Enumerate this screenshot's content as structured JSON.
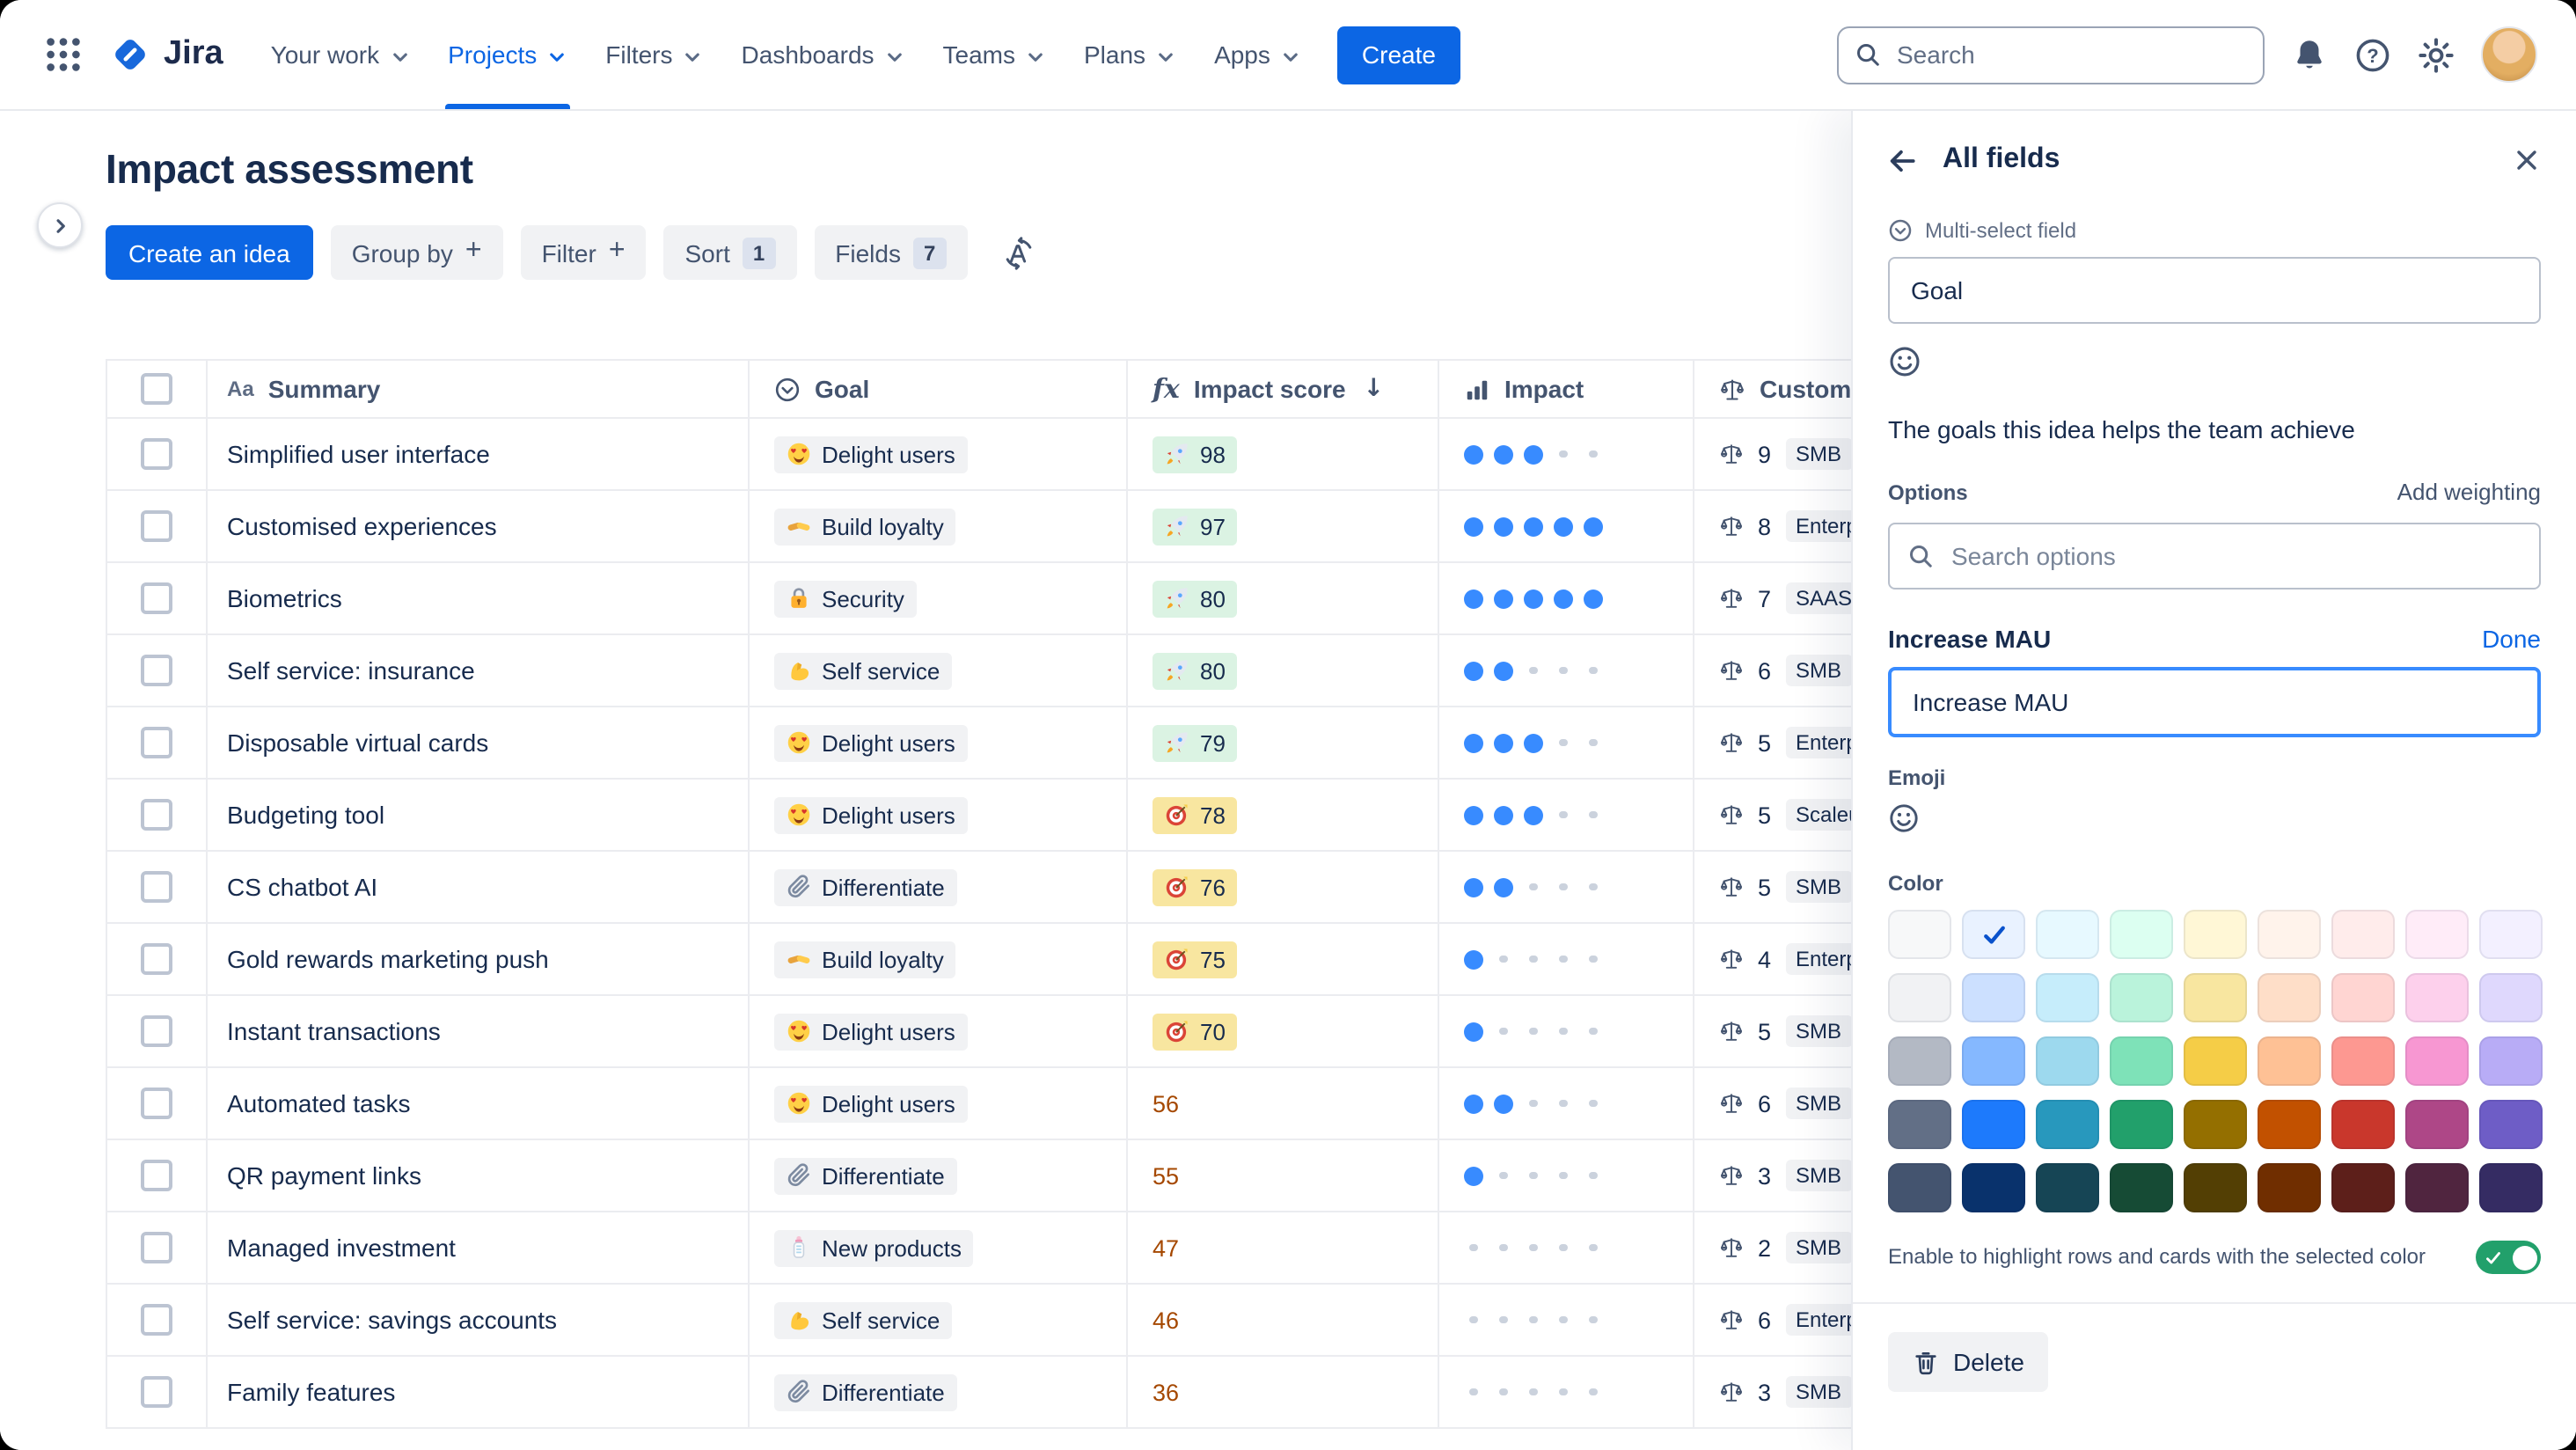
{
  "nav": {
    "brand": "Jira",
    "items": [
      {
        "label": "Your work"
      },
      {
        "label": "Projects",
        "active": true
      },
      {
        "label": "Filters"
      },
      {
        "label": "Dashboards"
      },
      {
        "label": "Teams"
      },
      {
        "label": "Plans"
      },
      {
        "label": "Apps"
      }
    ],
    "create_label": "Create",
    "search_placeholder": "Search",
    "right_icons": [
      "notifications-icon",
      "help-icon",
      "settings-icon",
      "user-avatar"
    ]
  },
  "page": {
    "title": "Impact assessment",
    "toolbar": {
      "create_idea": "Create an idea",
      "group_by": "Group by",
      "filter": "Filter",
      "sort": "Sort",
      "sort_count": "1",
      "fields": "Fields",
      "fields_count": "7"
    }
  },
  "table": {
    "columns": [
      {
        "key": "summary",
        "label": "Summary",
        "icon": "text-field-icon"
      },
      {
        "key": "goal",
        "label": "Goal",
        "icon": "select-field-icon"
      },
      {
        "key": "impact_score",
        "label": "Impact score",
        "icon": "formula-icon",
        "sorted": "desc"
      },
      {
        "key": "impact",
        "label": "Impact",
        "icon": "bar-chart-icon"
      },
      {
        "key": "customers",
        "label": "Customers",
        "icon": "scales-icon"
      }
    ],
    "rows": [
      {
        "summary": "Simplified user interface",
        "goal": {
          "emoji": "heart-eyes",
          "label": "Delight users"
        },
        "score": {
          "value": "98",
          "tier": "high",
          "emoji": "rocket"
        },
        "impact": 3,
        "customers": {
          "count": "9",
          "tag": "SMB"
        }
      },
      {
        "summary": "Customised experiences",
        "goal": {
          "emoji": "handshake",
          "label": "Build loyalty"
        },
        "score": {
          "value": "97",
          "tier": "high",
          "emoji": "rocket"
        },
        "impact": 5,
        "customers": {
          "count": "8",
          "tag": "Enterprise"
        }
      },
      {
        "summary": "Biometrics",
        "goal": {
          "emoji": "lock",
          "label": "Security"
        },
        "score": {
          "value": "80",
          "tier": "high",
          "emoji": "rocket"
        },
        "impact": 5,
        "customers": {
          "count": "7",
          "tag": "SAAS"
        }
      },
      {
        "summary": "Self service: insurance",
        "goal": {
          "emoji": "muscle",
          "label": "Self service"
        },
        "score": {
          "value": "80",
          "tier": "high",
          "emoji": "rocket"
        },
        "impact": 2,
        "customers": {
          "count": "6",
          "tag": "SMB"
        }
      },
      {
        "summary": "Disposable virtual cards",
        "goal": {
          "emoji": "heart-eyes",
          "label": "Delight users"
        },
        "score": {
          "value": "79",
          "tier": "high",
          "emoji": "rocket"
        },
        "impact": 3,
        "customers": {
          "count": "5",
          "tag": "Enterprise"
        }
      },
      {
        "summary": "Budgeting tool",
        "goal": {
          "emoji": "heart-eyes",
          "label": "Delight users"
        },
        "score": {
          "value": "78",
          "tier": "mid",
          "emoji": "target"
        },
        "impact": 3,
        "customers": {
          "count": "5",
          "tag": "Scaleup"
        }
      },
      {
        "summary": "CS chatbot AI",
        "goal": {
          "emoji": "clip",
          "label": "Differentiate"
        },
        "score": {
          "value": "76",
          "tier": "mid",
          "emoji": "target"
        },
        "impact": 2,
        "customers": {
          "count": "5",
          "tag": "SMB"
        }
      },
      {
        "summary": "Gold rewards marketing push",
        "goal": {
          "emoji": "handshake",
          "label": "Build loyalty"
        },
        "score": {
          "value": "75",
          "tier": "mid",
          "emoji": "target"
        },
        "impact": 1,
        "customers": {
          "count": "4",
          "tag": "Enterprise"
        }
      },
      {
        "summary": "Instant transactions",
        "goal": {
          "emoji": "heart-eyes",
          "label": "Delight users"
        },
        "score": {
          "value": "70",
          "tier": "mid",
          "emoji": "target"
        },
        "impact": 1,
        "customers": {
          "count": "5",
          "tag": "SMB"
        }
      },
      {
        "summary": "Automated tasks",
        "goal": {
          "emoji": "heart-eyes",
          "label": "Delight users"
        },
        "score": {
          "value": "56",
          "tier": "low"
        },
        "impact": 2,
        "customers": {
          "count": "6",
          "tag": "SMB"
        }
      },
      {
        "summary": "QR payment links",
        "goal": {
          "emoji": "clip",
          "label": "Differentiate"
        },
        "score": {
          "value": "55",
          "tier": "low"
        },
        "impact": 1,
        "customers": {
          "count": "3",
          "tag": "SMB"
        }
      },
      {
        "summary": "Managed investment",
        "goal": {
          "emoji": "bottle",
          "label": "New products"
        },
        "score": {
          "value": "47",
          "tier": "low"
        },
        "impact": 0,
        "customers": {
          "count": "2",
          "tag": "SMB"
        }
      },
      {
        "summary": "Self service: savings accounts",
        "goal": {
          "emoji": "muscle",
          "label": "Self service"
        },
        "score": {
          "value": "46",
          "tier": "low"
        },
        "impact": 0,
        "customers": {
          "count": "6",
          "tag": "Enterprise"
        }
      },
      {
        "summary": "Family features",
        "goal": {
          "emoji": "clip",
          "label": "Differentiate"
        },
        "score": {
          "value": "36",
          "tier": "low"
        },
        "impact": 0,
        "customers": {
          "count": "3",
          "tag": "SMB"
        }
      }
    ]
  },
  "panel": {
    "title": "All fields",
    "field_type": "Multi-select field",
    "field_name": "Goal",
    "description": "The goals this idea helps the team achieve",
    "options_label": "Options",
    "add_weighting": "Add weighting",
    "search_placeholder": "Search options",
    "option": {
      "name": "Increase MAU",
      "done": "Done",
      "value": "Increase MAU"
    },
    "emoji_label": "Emoji",
    "color_label": "Color",
    "colors": [
      [
        "#F7F8F9",
        "#E9F2FF",
        "#E7F9FF",
        "#DCFFF1",
        "#FFF7D6",
        "#FFF3EB",
        "#FFECEB",
        "#FFECF8",
        "#F3F0FF"
      ],
      [
        "#F1F2F4",
        "#CCE0FF",
        "#C6EDFB",
        "#BAF3DB",
        "#F8E6A0",
        "#FEDEC8",
        "#FFD5D2",
        "#FDD0EC",
        "#DFD8FD"
      ],
      [
        "#B3B9C4",
        "#85B8FF",
        "#9DD9EE",
        "#7EE2B8",
        "#F5CD47",
        "#FEC195",
        "#FD9891",
        "#F797D2",
        "#B8ACF6"
      ],
      [
        "#626F86",
        "#1D7AFC",
        "#2898BD",
        "#22A06B",
        "#946F00",
        "#C25100",
        "#C9372C",
        "#AE4787",
        "#6E5DC6"
      ],
      [
        "#44546F",
        "#09326C",
        "#164555",
        "#164B35",
        "#533F04",
        "#702E00",
        "#5D1F1A",
        "#50253F",
        "#352C63"
      ]
    ],
    "selected_color": {
      "row": 0,
      "col": 1,
      "check_color": "#0952CC"
    },
    "toggle_label": "Enable to highlight rows and cards with the selected color",
    "toggle_on": true,
    "delete_label": "Delete"
  }
}
